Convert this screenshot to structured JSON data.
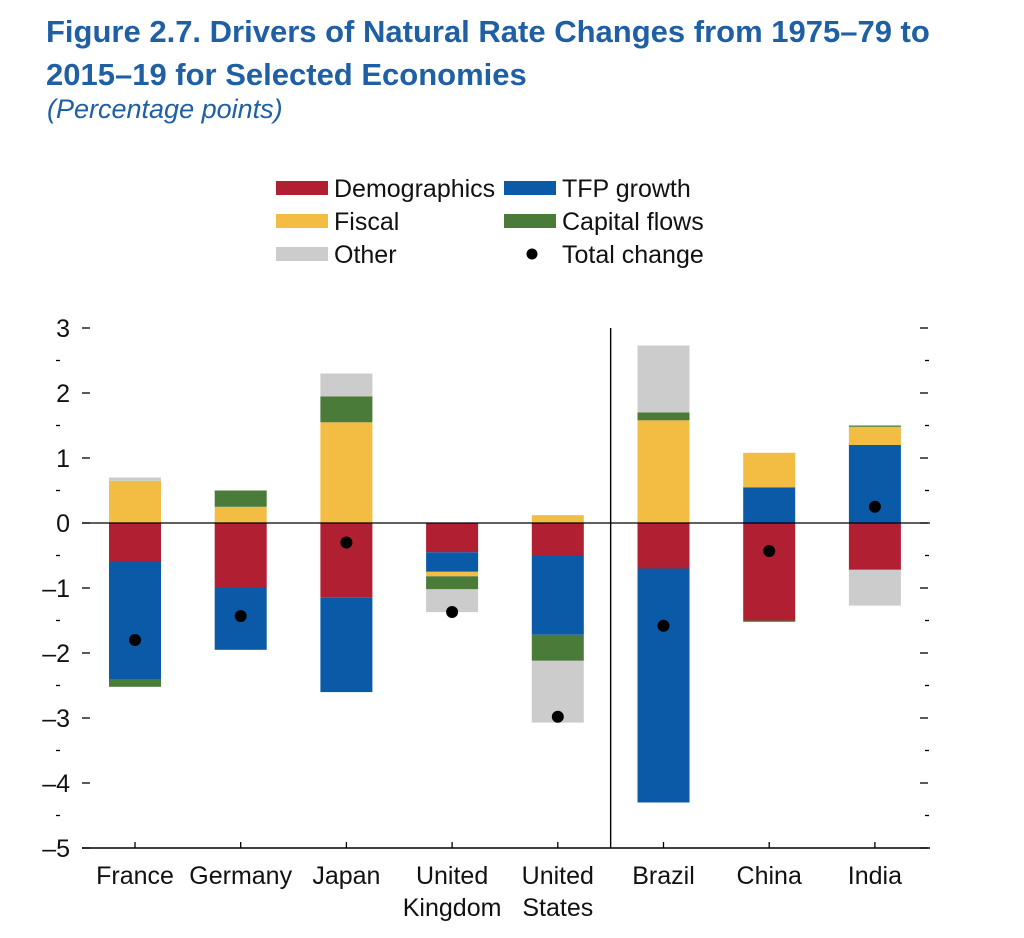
{
  "figure": {
    "title": "Figure 2.7.  Drivers of Natural Rate Changes from 1975–79 to 2015–19 for Selected Economies",
    "subtitle": "(Percentage points)"
  },
  "colors": {
    "Demographics": "#b01f32",
    "TFP growth": "#0b5aa8",
    "Fiscal": "#f2bd42",
    "Capital flows": "#4a7b39",
    "Other": "#cccccc",
    "Total change": "#000000"
  },
  "chart_data": {
    "type": "bar",
    "stacked": true,
    "title": "",
    "xlabel": "",
    "ylabel": "",
    "ylim": [
      -5,
      3
    ],
    "yticks": [
      "3",
      "2",
      "1",
      "0",
      "–1",
      "–2",
      "–3",
      "–4",
      "–5"
    ],
    "ytick_values": [
      3,
      2,
      1,
      0,
      -1,
      -2,
      -3,
      -4,
      -5
    ],
    "grid": false,
    "legend_position": "top",
    "categories": [
      [
        "France"
      ],
      [
        "Germany"
      ],
      [
        "Japan"
      ],
      [
        "United",
        "Kingdom"
      ],
      [
        "United",
        "States"
      ],
      [
        "Brazil"
      ],
      [
        "China"
      ],
      [
        "India"
      ]
    ],
    "divider_after_index": 4,
    "series": [
      {
        "name": "Demographics",
        "values": [
          -0.6,
          -1.0,
          -1.15,
          -0.45,
          -0.5,
          -0.7,
          -1.5,
          -0.72
        ]
      },
      {
        "name": "TFP growth",
        "values": [
          -1.8,
          -0.95,
          -1.45,
          -0.3,
          -1.22,
          -3.6,
          0.55,
          1.2
        ]
      },
      {
        "name": "Fiscal",
        "values": [
          0.65,
          0.25,
          1.55,
          -0.07,
          0.12,
          1.58,
          0.53,
          0.28
        ]
      },
      {
        "name": "Capital flows",
        "values": [
          -0.12,
          0.25,
          0.4,
          -0.2,
          -0.4,
          0.12,
          -0.02,
          0.02
        ]
      },
      {
        "name": "Other",
        "values": [
          0.05,
          0.0,
          0.35,
          -0.35,
          -0.95,
          1.03,
          0.0,
          -0.55
        ]
      },
      {
        "name": "Total change",
        "type": "dot",
        "values": [
          -1.8,
          -1.43,
          -0.3,
          -1.37,
          -2.98,
          -1.58,
          -0.43,
          0.25
        ]
      }
    ]
  }
}
